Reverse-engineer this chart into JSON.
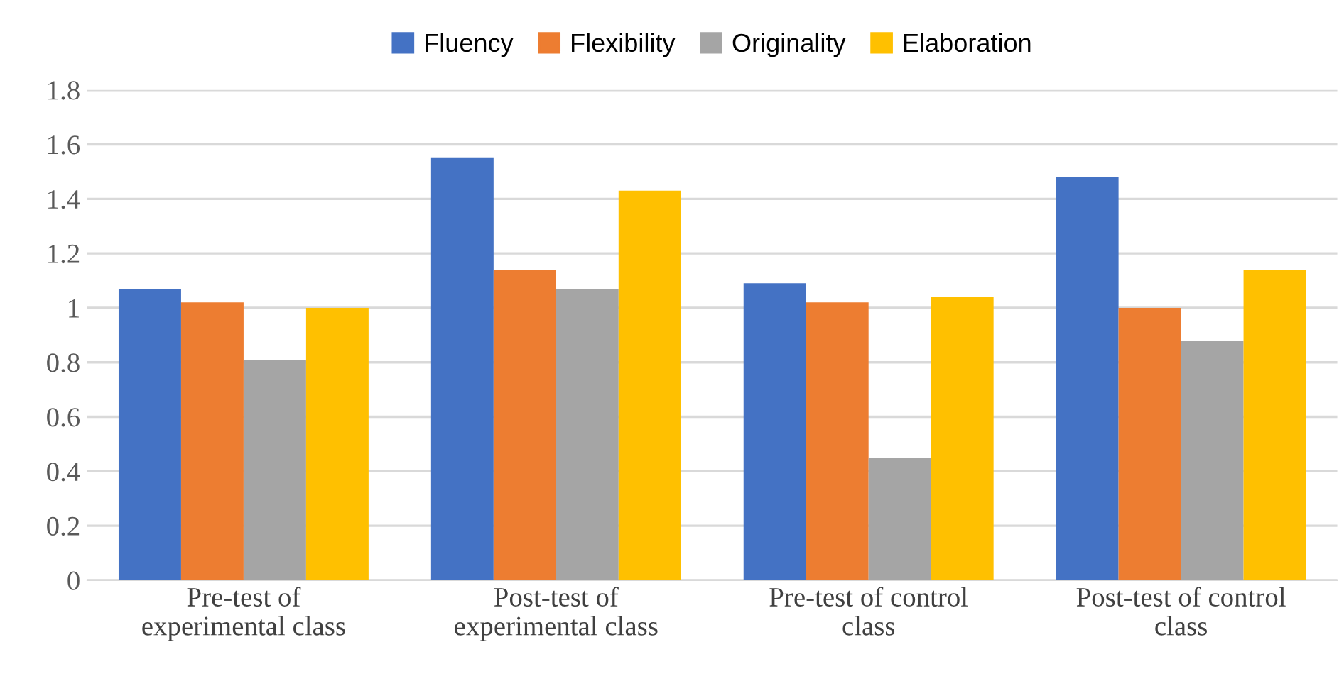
{
  "chart_data": {
    "type": "bar",
    "categories": [
      "Pre-test of\nexperimental class",
      "Post-test of\nexperimental class",
      "Pre-test of control\nclass",
      "Post-test of control\nclass"
    ],
    "series": [
      {
        "name": "Fluency",
        "color": "#4472c4",
        "values": [
          1.07,
          1.55,
          1.09,
          1.48
        ]
      },
      {
        "name": "Flexibility",
        "color": "#ed7d31",
        "values": [
          1.02,
          1.14,
          1.02,
          1.0
        ]
      },
      {
        "name": "Originality",
        "color": "#a5a5a5",
        "values": [
          0.81,
          1.07,
          0.45,
          0.88
        ]
      },
      {
        "name": "Elaboration",
        "color": "#ffc000",
        "values": [
          1.0,
          1.43,
          1.04,
          1.14
        ]
      }
    ],
    "ylim": [
      0,
      1.8
    ],
    "yticks": [
      0,
      0.2,
      0.4,
      0.6,
      0.8,
      1,
      1.2,
      1.4,
      1.6,
      1.8
    ],
    "grid": "y",
    "legend": "top"
  }
}
